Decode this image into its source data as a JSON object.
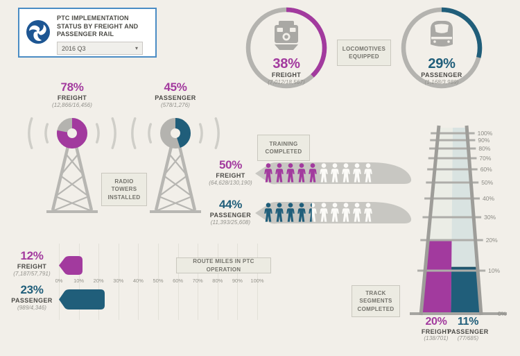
{
  "colors": {
    "freight": "#a23a9e",
    "passenger": "#205e7a",
    "donut_track": "#b4b3af",
    "icon_gray": "#a9a8a4",
    "train_row": "#c8c7c2",
    "person_empty": "#fcfbf8",
    "background": "#f2efe9",
    "header_border": "#4a8cc4",
    "logo_blue": "#1d5693"
  },
  "header": {
    "title": "PTC IMPLEMENTATION STATUS BY FREIGHT AND PASSENGER RAIL",
    "quarter": "2016 Q3",
    "dropdown_caret": "▾"
  },
  "locomotives": {
    "label": "LOCOMOTIVES EQUIPPED",
    "freight": {
      "pct": "38%",
      "name": "FREIGHT",
      "ratio": "(7,012/18,567)"
    },
    "passenger": {
      "pct": "29%",
      "name": "PASSENGER",
      "ratio": "(1,168/3,989)"
    }
  },
  "radio_towers": {
    "label": "RADIO TOWERS INSTALLED",
    "freight": {
      "pct": "78%",
      "name": "FREIGHT",
      "ratio": "(12,866/16,456)"
    },
    "passenger": {
      "pct": "45%",
      "name": "PASSENGER",
      "ratio": "(578/1,276)"
    }
  },
  "training": {
    "label": "TRAINING COMPLETED",
    "freight": {
      "pct": "50%",
      "name": "FREIGHT",
      "ratio": "(64,628/130,190)"
    },
    "passenger": {
      "pct": "44%",
      "name": "PASSENGER",
      "ratio": "(11,393/25,608)"
    }
  },
  "route_miles": {
    "label": "ROUTE MILES IN PTC OPERATION",
    "freight": {
      "pct": "12%",
      "name": "FREIGHT",
      "ratio": "(7,187/57,791)"
    },
    "passenger": {
      "pct": "23%",
      "name": "PASSENGER",
      "ratio": "(989/4,346)"
    }
  },
  "track_segments": {
    "label": "TRACK SEGMENTS COMPLETED",
    "freight": {
      "pct": "20%",
      "name": "FREIGHT",
      "ratio": "(138/701)"
    },
    "passenger": {
      "pct": "11%",
      "name": "PASSENGER",
      "ratio": "(77/685)"
    }
  },
  "chart_data": [
    {
      "id": "locomotives",
      "type": "donut",
      "title": "LOCOMOTIVES EQUIPPED",
      "series": [
        {
          "key": "freight",
          "name": "FREIGHT",
          "pct": 38,
          "completed": 7012,
          "total": 18567
        },
        {
          "key": "passenger",
          "name": "PASSENGER",
          "pct": 29,
          "completed": 1168,
          "total": 3989
        }
      ]
    },
    {
      "id": "radio_towers",
      "type": "donut",
      "title": "RADIO TOWERS INSTALLED",
      "series": [
        {
          "key": "freight",
          "name": "FREIGHT",
          "pct": 78,
          "completed": 12866,
          "total": 16456
        },
        {
          "key": "passenger",
          "name": "PASSENGER",
          "pct": 45,
          "completed": 578,
          "total": 1276
        }
      ]
    },
    {
      "id": "training",
      "type": "pictograph",
      "title": "TRAINING COMPLETED",
      "icons_per_row": 10,
      "series": [
        {
          "key": "freight",
          "name": "FREIGHT",
          "pct": 50,
          "completed": 64628,
          "total": 130190
        },
        {
          "key": "passenger",
          "name": "PASSENGER",
          "pct": 44,
          "completed": 11393,
          "total": 25608
        }
      ]
    },
    {
      "id": "route_miles",
      "type": "bar",
      "orientation": "horizontal",
      "title": "ROUTE MILES IN PTC OPERATION",
      "xlim": [
        0,
        100
      ],
      "x_ticks": [
        "0%",
        "10%",
        "20%",
        "30%",
        "40%",
        "50%",
        "60%",
        "70%",
        "80%",
        "90%",
        "100%"
      ],
      "series": [
        {
          "key": "freight",
          "name": "FREIGHT",
          "pct": 12,
          "completed": 7187,
          "total": 57791
        },
        {
          "key": "passenger",
          "name": "PASSENGER",
          "pct": 23,
          "completed": 989,
          "total": 4346
        }
      ]
    },
    {
      "id": "track_segments",
      "type": "bar",
      "orientation": "vertical",
      "title": "TRACK SEGMENTS COMPLETED",
      "ylim": [
        0,
        100
      ],
      "y_ticks": [
        "0%",
        "10%",
        "20%",
        "30%",
        "40%",
        "50%",
        "60%",
        "70%",
        "80%",
        "90%",
        "100%"
      ],
      "series": [
        {
          "key": "freight",
          "name": "FREIGHT",
          "pct": 20,
          "completed": 138,
          "total": 701
        },
        {
          "key": "passenger",
          "name": "PASSENGER",
          "pct": 11,
          "completed": 77,
          "total": 685
        }
      ]
    }
  ]
}
